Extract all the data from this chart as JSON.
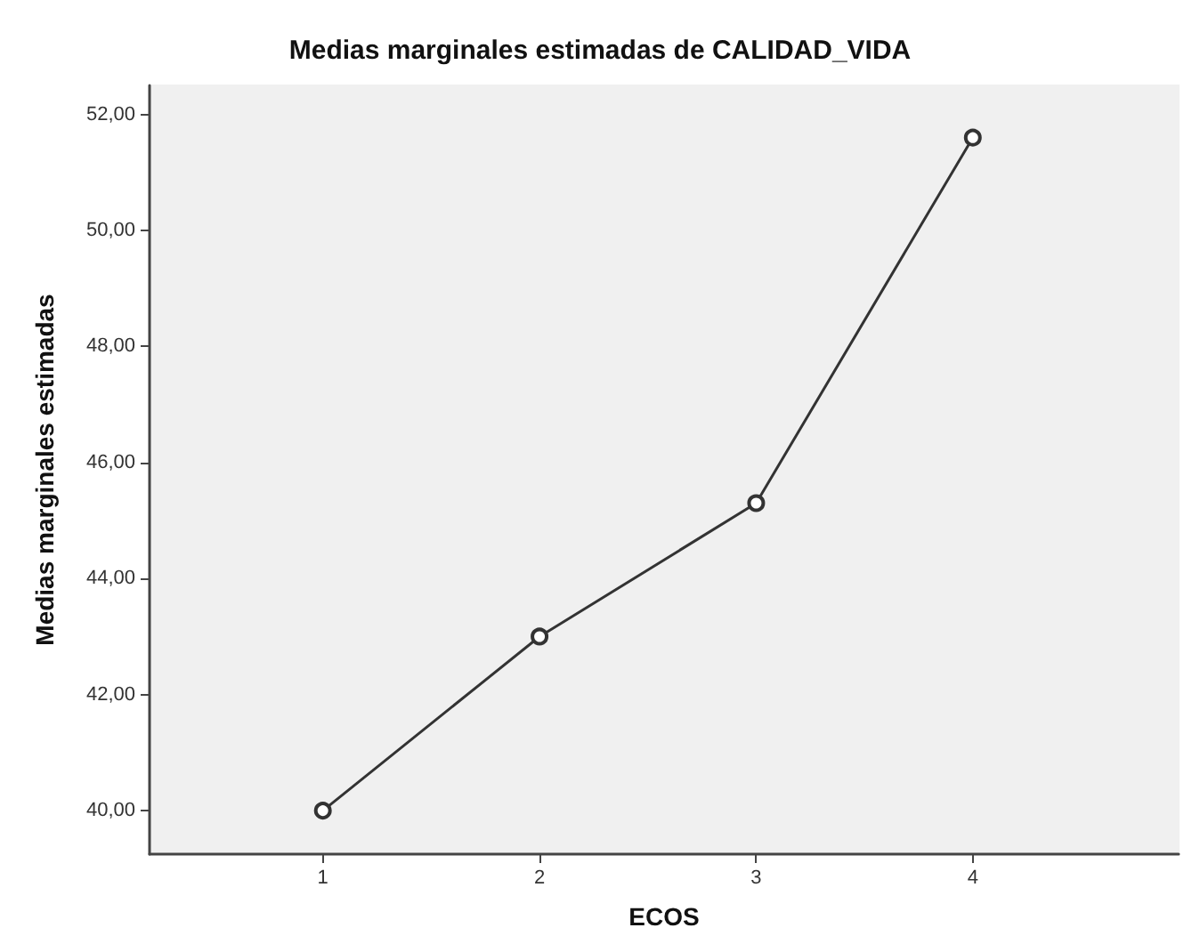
{
  "chart_data": {
    "type": "line",
    "title": "Medias marginales estimadas de CALIDAD_VIDA",
    "xlabel": "ECOS",
    "ylabel": "Medias marginales estimadas",
    "x": [
      1,
      2,
      3,
      4
    ],
    "values": [
      40.0,
      43.0,
      45.3,
      51.6
    ],
    "color": "#333333",
    "marker": "circle",
    "line_style": "solid",
    "grid": false,
    "xlim": [
      0.2,
      4.95
    ],
    "xticks": [
      1,
      2,
      3,
      4
    ],
    "ylim": [
      39.25,
      52.5
    ],
    "yticks": [
      {
        "value": 40,
        "label": "40,00"
      },
      {
        "value": 42,
        "label": "42,00"
      },
      {
        "value": 44,
        "label": "44,00"
      },
      {
        "value": 46,
        "label": "46,00"
      },
      {
        "value": 48,
        "label": "48,00"
      },
      {
        "value": 50,
        "label": "50,00"
      },
      {
        "value": 52,
        "label": "52,00"
      }
    ]
  }
}
